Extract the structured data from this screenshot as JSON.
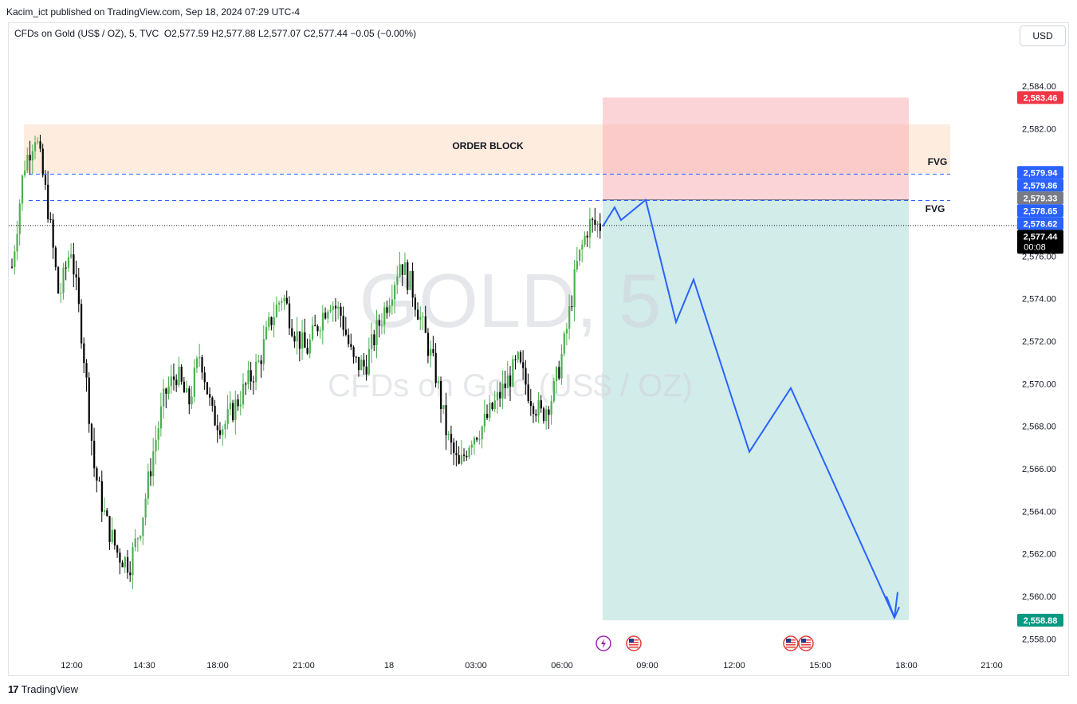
{
  "header": {
    "published": "Kacim_ict published on TradingView.com, Sep 18, 2024 07:29 UTC-4",
    "symbol_line": "CFDs on Gold (US$ / OZ), 5, TVC",
    "ohlc": "O2,577.59  H2,577.88  L2,577.07  C2,577.44  −0.05 (−0.00%)"
  },
  "currency_button": "USD",
  "footer": {
    "brand": "TradingView",
    "logo_icon": "tradingview-logo-icon"
  },
  "watermark": {
    "ticker": "GOLD, 5",
    "name": "CFDs on Gold (US$ / OZ)"
  },
  "annotations": {
    "order_block": "ORDER BLOCK",
    "fvg_upper": "FVG",
    "fvg_lower": "FVG"
  },
  "colors": {
    "up": "#4caf50",
    "down": "#000000",
    "projection": "#2962ff",
    "stop_zone": "#f7b1b8",
    "target_zone": "#b2dfdb",
    "order_block": "#fde0c8"
  },
  "event_icons": [
    "lightning-icon",
    "us-flag-icon",
    "us-flag-icon",
    "us-flag-icon"
  ],
  "chart_data": {
    "type": "candlestick",
    "y_axis": {
      "ticks": [
        2558,
        2560,
        2562,
        2564,
        2566,
        2568,
        2570,
        2572,
        2574,
        2576,
        2578,
        2580,
        2582,
        2584
      ],
      "tick_labels": [
        "2,558.00",
        "2,560.00",
        "2,562.00",
        "2,564.00",
        "2,566.00",
        "2,568.00",
        "2,570.00",
        "2,572.00",
        "2,574.00",
        "2,576.00",
        "2,578.00",
        "2,580.00",
        "2,582.00",
        "2,584.00"
      ],
      "range": [
        2557.3,
        2585.8
      ]
    },
    "x_axis": {
      "tick_labels": [
        "12:00",
        "14:30",
        "18:00",
        "21:00",
        "18",
        "03:00",
        "06:00",
        "09:00",
        "12:00",
        "15:00",
        "18:00",
        "21:00"
      ]
    },
    "price_labels": [
      {
        "value": 2583.46,
        "text": "2,583.46",
        "color": "#f23645"
      },
      {
        "value": 2579.94,
        "text": "2,579.94",
        "color": "#2962ff"
      },
      {
        "value": 2579.86,
        "text": "2,579.86",
        "color": "#2962ff"
      },
      {
        "value": 2579.33,
        "text": "2,579.33",
        "color": "#787b86"
      },
      {
        "value": 2578.65,
        "text": "2,578.65",
        "color": "#2962ff"
      },
      {
        "value": 2578.62,
        "text": "2,578.62",
        "color": "#2962ff"
      },
      {
        "value": 2577.44,
        "text": "2,577.44",
        "sub": "00:08",
        "color": "#000000"
      },
      {
        "value": 2558.88,
        "text": "2,558.88",
        "color": "#089981"
      }
    ],
    "zones": {
      "order_block": [
        2579.9,
        2582.2
      ],
      "stop": [
        2578.65,
        2583.46
      ],
      "target": [
        2558.88,
        2578.65
      ]
    },
    "fvg_lines": [
      2579.86,
      2578.62
    ],
    "last_price": 2577.44,
    "projection_path": [
      2577.4,
      2578.3,
      2577.7,
      2578.65,
      2572.9,
      2574.9,
      2566.8,
      2569.8,
      2559.0,
      2559.5
    ],
    "candles_close_path": [
      2575.5,
      2580.2,
      2581.8,
      2578.5,
      2574.0,
      2576.5,
      2572.0,
      2566.0,
      2563.5,
      2562.0,
      2561.5,
      2563.5,
      2566.8,
      2569.5,
      2570.5,
      2569.0,
      2571.5,
      2568.5,
      2568.0,
      2569.0,
      2570.0,
      2571.0,
      2573.0,
      2574.2,
      2572.5,
      2571.5,
      2572.8,
      2574.0,
      2573.2,
      2571.0,
      2570.8,
      2572.5,
      2574.0,
      2575.8,
      2574.5,
      2572.5,
      2570.5,
      2567.5,
      2566.0,
      2567.5,
      2568.0,
      2569.0,
      2570.0,
      2571.0,
      2569.5,
      2568.5,
      2569.5,
      2572.0,
      2575.5,
      2577.5,
      2577.44
    ]
  }
}
